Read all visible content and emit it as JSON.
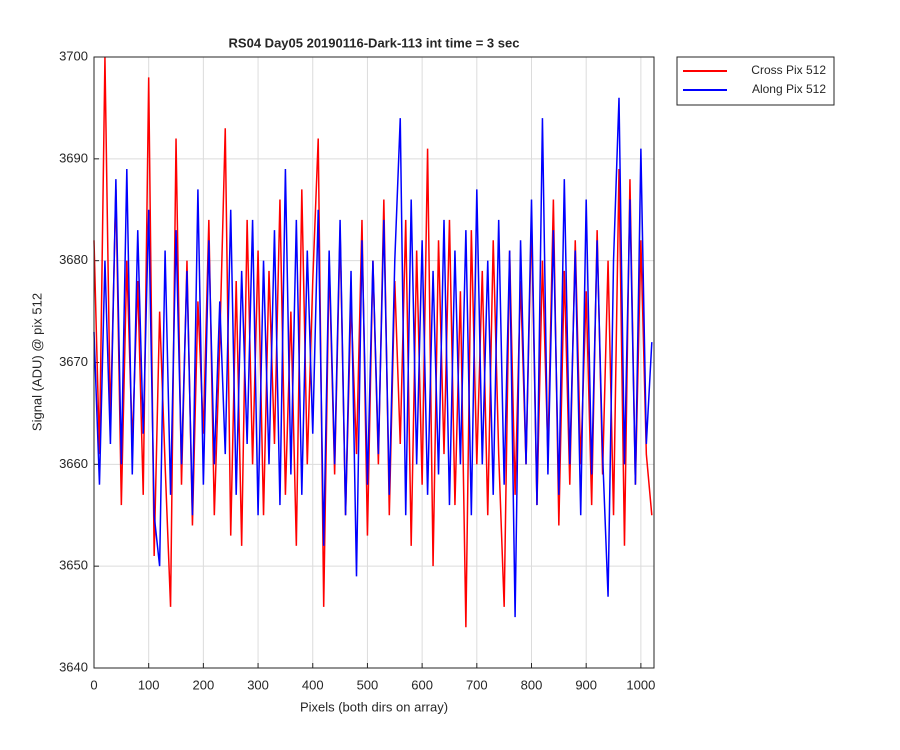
{
  "chart_data": {
    "type": "line",
    "title": "RS04 Day05 20190116-Dark-113 int time = 3 sec",
    "x_label": "Pixels (both dirs on array)",
    "y_label": "Signal (ADU) @ pix 512",
    "x": [
      0,
      10,
      20,
      30,
      40,
      50,
      60,
      70,
      80,
      90,
      100,
      110,
      120,
      130,
      140,
      150,
      160,
      170,
      180,
      190,
      200,
      210,
      220,
      230,
      240,
      250,
      260,
      270,
      280,
      290,
      300,
      310,
      320,
      330,
      340,
      350,
      360,
      370,
      380,
      390,
      400,
      410,
      420,
      430,
      440,
      450,
      460,
      470,
      480,
      490,
      500,
      510,
      520,
      530,
      540,
      550,
      560,
      570,
      580,
      590,
      600,
      610,
      620,
      630,
      640,
      650,
      660,
      670,
      680,
      690,
      700,
      710,
      720,
      730,
      740,
      750,
      760,
      770,
      780,
      790,
      800,
      810,
      820,
      830,
      840,
      850,
      860,
      870,
      880,
      890,
      900,
      910,
      920,
      930,
      940,
      950,
      960,
      970,
      980,
      990,
      1000,
      1010,
      1020
    ],
    "series": [
      {
        "name": "Cross Pix 512",
        "color": "#ff0000",
        "values": [
          3682,
          3661,
          3700,
          3664,
          3687,
          3656,
          3680,
          3662,
          3678,
          3657,
          3698,
          3651,
          3675,
          3660,
          3646,
          3692,
          3658,
          3680,
          3654,
          3676,
          3663,
          3684,
          3655,
          3672,
          3693,
          3653,
          3678,
          3652,
          3684,
          3660,
          3681,
          3655,
          3679,
          3662,
          3686,
          3657,
          3675,
          3652,
          3687,
          3660,
          3678,
          3692,
          3646,
          3680,
          3659,
          3683,
          3655,
          3676,
          3661,
          3684,
          3653,
          3680,
          3660,
          3686,
          3655,
          3678,
          3662,
          3684,
          3652,
          3681,
          3658,
          3691,
          3650,
          3682,
          3661,
          3684,
          3656,
          3677,
          3644,
          3683,
          3660,
          3679,
          3655,
          3682,
          3661,
          3646,
          3681,
          3657,
          3678,
          3660,
          3684,
          3656,
          3680,
          3661,
          3686,
          3654,
          3679,
          3658,
          3682,
          3660,
          3677,
          3656,
          3683,
          3659,
          3680,
          3655,
          3689,
          3652,
          3688,
          3658,
          3682,
          3661,
          3655
        ]
      },
      {
        "name": "Along Pix 512",
        "color": "#0000ff",
        "values": [
          3673,
          3658,
          3680,
          3662,
          3688,
          3660,
          3689,
          3659,
          3683,
          3663,
          3685,
          3655,
          3650,
          3681,
          3657,
          3683,
          3660,
          3679,
          3655,
          3687,
          3658,
          3682,
          3660,
          3676,
          3661,
          3685,
          3657,
          3679,
          3662,
          3684,
          3655,
          3680,
          3660,
          3683,
          3656,
          3689,
          3659,
          3684,
          3657,
          3681,
          3663,
          3685,
          3652,
          3681,
          3660,
          3684,
          3655,
          3679,
          3649,
          3682,
          3658,
          3680,
          3661,
          3684,
          3657,
          3680,
          3694,
          3655,
          3686,
          3660,
          3682,
          3657,
          3679,
          3659,
          3684,
          3656,
          3681,
          3660,
          3683,
          3655,
          3687,
          3660,
          3680,
          3657,
          3684,
          3658,
          3681,
          3645,
          3682,
          3660,
          3686,
          3656,
          3694,
          3659,
          3683,
          3657,
          3688,
          3660,
          3681,
          3655,
          3686,
          3659,
          3682,
          3661,
          3647,
          3680,
          3696,
          3660,
          3686,
          3658,
          3691,
          3662,
          3672
        ]
      }
    ],
    "xlim": [
      0,
      1024
    ],
    "xticks": [
      0,
      100,
      200,
      300,
      400,
      500,
      600,
      700,
      800,
      900,
      1000
    ],
    "ylim": [
      3640,
      3700
    ],
    "yticks": [
      3640,
      3650,
      3660,
      3670,
      3680,
      3690,
      3700
    ],
    "grid": true,
    "legend": "northeastoutside"
  }
}
